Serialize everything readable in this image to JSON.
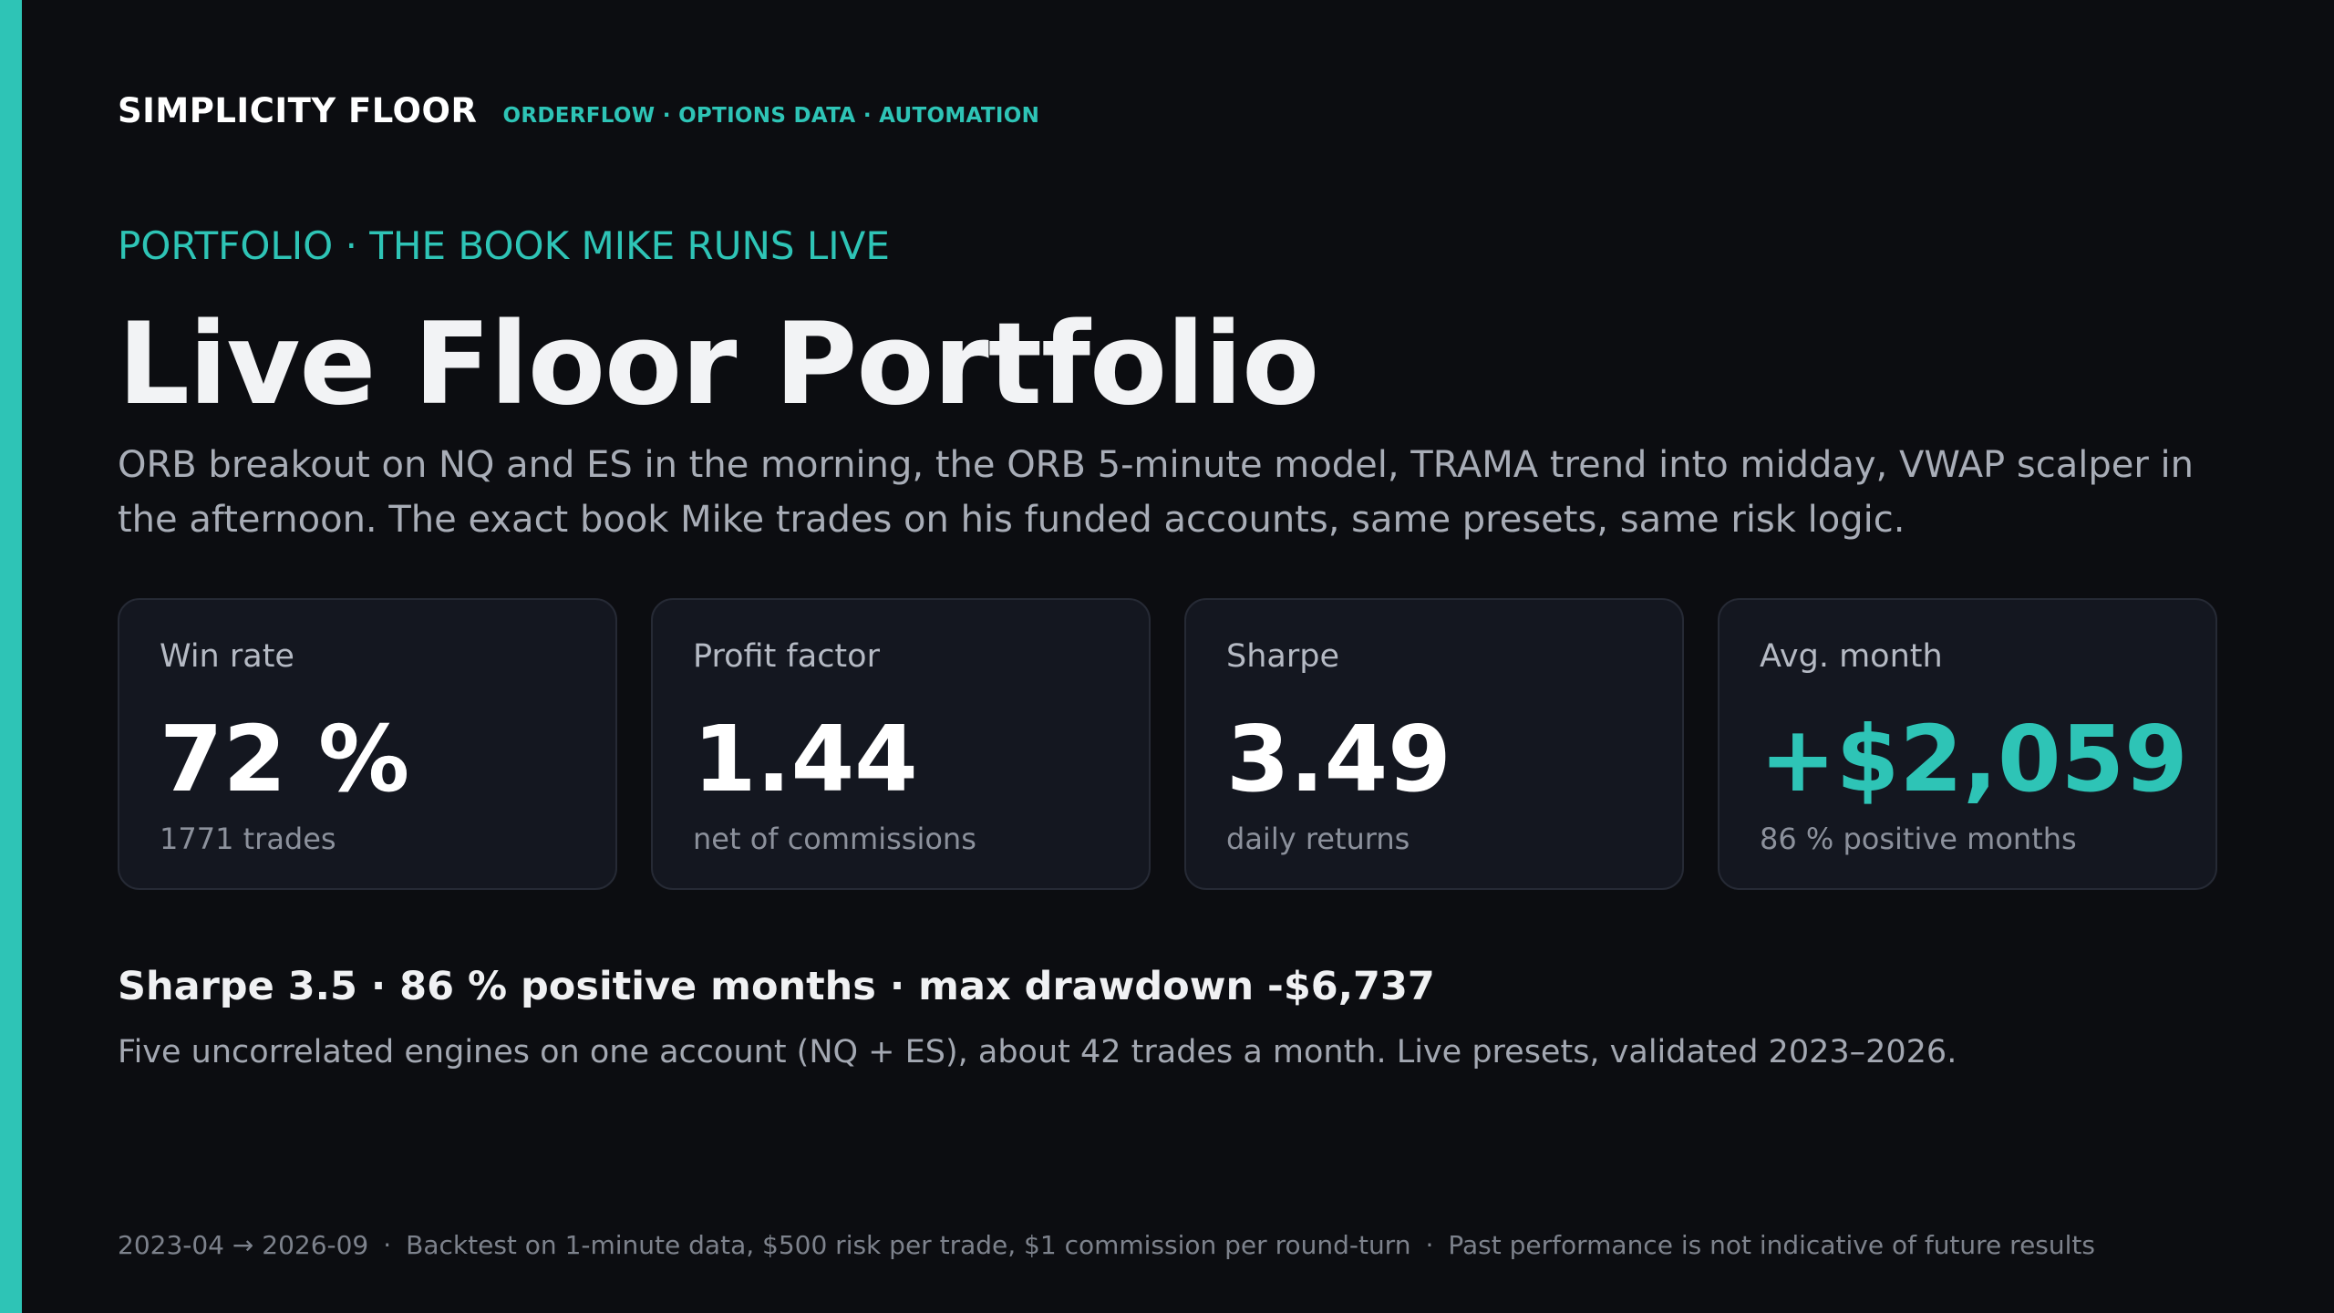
{
  "brand": {
    "name": "SIMPLICITY FLOOR",
    "tagline": "ORDERFLOW · OPTIONS DATA · AUTOMATION"
  },
  "hero": {
    "eyebrow": "PORTFOLIO · THE BOOK MIKE RUNS LIVE",
    "title": "Live Floor Portfolio",
    "description": "ORB breakout on NQ and ES in the morning, the ORB 5-minute model, TRAMA trend into midday, VWAP scalper in the afternoon. The exact book Mike trades on his funded accounts, same presets, same risk logic."
  },
  "stats": [
    {
      "label": "Win rate",
      "value": "72 %",
      "note": "1771 trades"
    },
    {
      "label": "Profit factor",
      "value": "1.44",
      "note": "net of commissions"
    },
    {
      "label": "Sharpe",
      "value": "3.49",
      "note": "daily returns"
    },
    {
      "label": "Avg. month",
      "value": "+$2,059",
      "note": "86 % positive months"
    }
  ],
  "summary": {
    "headline": "Sharpe 3.5 · 86 % positive months · max drawdown -$6,737",
    "detail": "Five uncorrelated engines on one account (NQ + ES), about 42 trades a month. Live presets, validated 2023–2026."
  },
  "footer": {
    "period": "2023-04 → 2026-09",
    "separator": "·",
    "methodology": "Backtest on 1-minute data, $500 risk per trade, $1 commission per round-turn",
    "disclaimer": "Past performance is not indicative of future results"
  },
  "colors": {
    "accent": "#2ec4b6",
    "background": "#0c0d11",
    "card": "#141720"
  }
}
